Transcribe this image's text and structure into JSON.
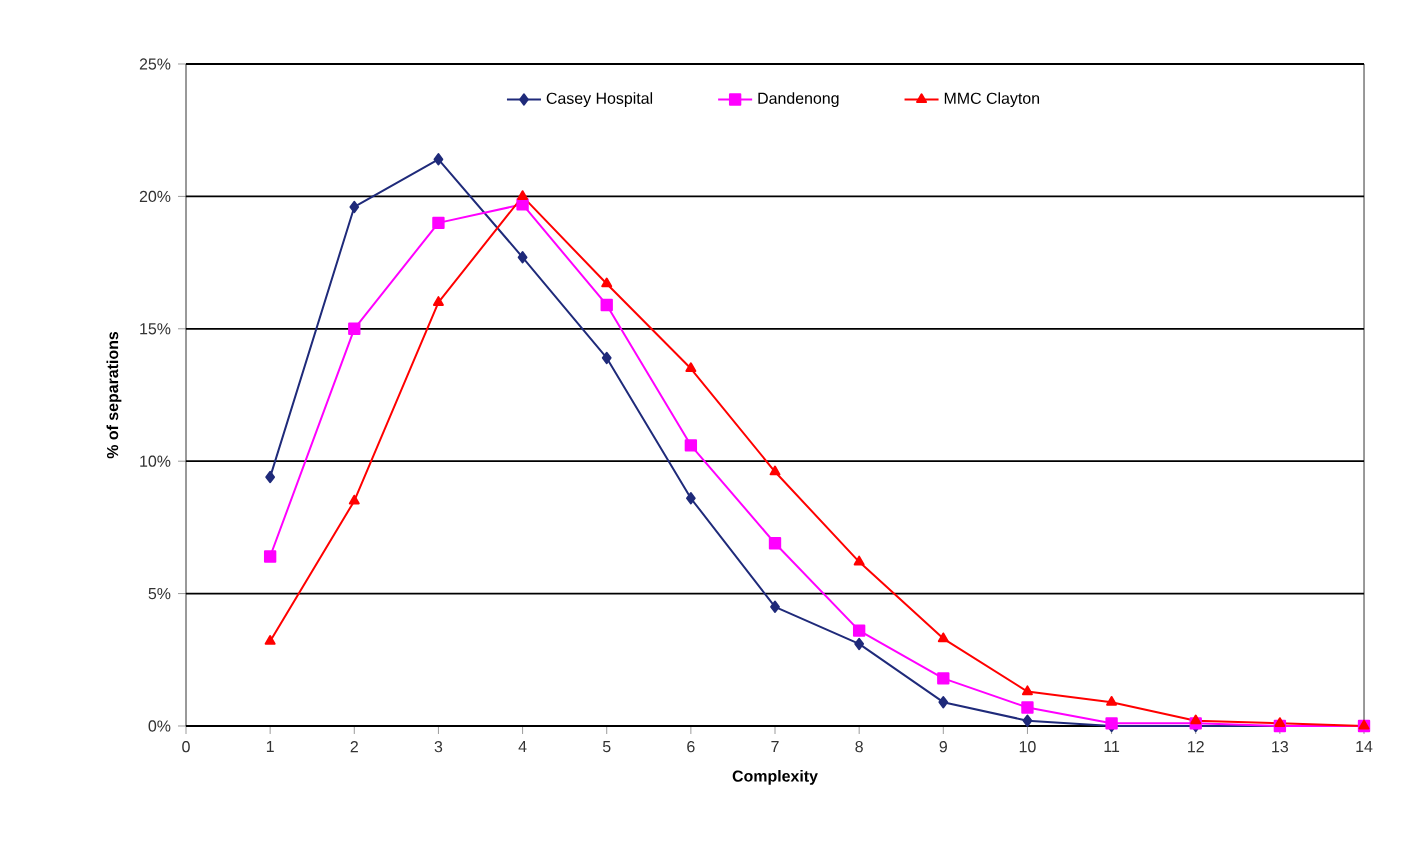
{
  "chart_data": {
    "type": "line",
    "xlabel": "Complexity",
    "ylabel": "% of separations",
    "x": [
      1,
      2,
      3,
      4,
      5,
      6,
      7,
      8,
      9,
      10,
      11,
      12,
      13,
      14
    ],
    "xlim": [
      0,
      14
    ],
    "xticks": [
      0,
      1,
      2,
      3,
      4,
      5,
      6,
      7,
      8,
      9,
      10,
      11,
      12,
      13,
      14
    ],
    "ylim": [
      0,
      25
    ],
    "yticks": [
      {
        "value": 0,
        "label": "0%"
      },
      {
        "value": 5,
        "label": "5%"
      },
      {
        "value": 10,
        "label": "10%"
      },
      {
        "value": 15,
        "label": "15%"
      },
      {
        "value": 20,
        "label": "20%"
      },
      {
        "value": 25,
        "label": "25%"
      }
    ],
    "grid": "y",
    "legend": "top",
    "line_style": "solid",
    "series": [
      {
        "name": "Casey Hospital",
        "color": "#1f2a7a",
        "marker": "diamond",
        "values": [
          9.4,
          19.6,
          21.4,
          17.7,
          13.9,
          8.6,
          4.5,
          3.1,
          0.9,
          0.2,
          0,
          0,
          0,
          0
        ]
      },
      {
        "name": "Dandenong",
        "color": "#ff00ff",
        "marker": "square",
        "values": [
          6.4,
          15.0,
          19.0,
          19.7,
          15.9,
          10.6,
          6.9,
          3.6,
          1.8,
          0.7,
          0.1,
          0.1,
          0,
          0
        ]
      },
      {
        "name": "MMC Clayton",
        "color": "#ff0000",
        "marker": "triangle",
        "values": [
          3.2,
          8.5,
          16.0,
          20.0,
          16.7,
          13.5,
          9.6,
          6.2,
          3.3,
          1.3,
          0.9,
          0.2,
          0.1,
          0
        ]
      }
    ]
  }
}
